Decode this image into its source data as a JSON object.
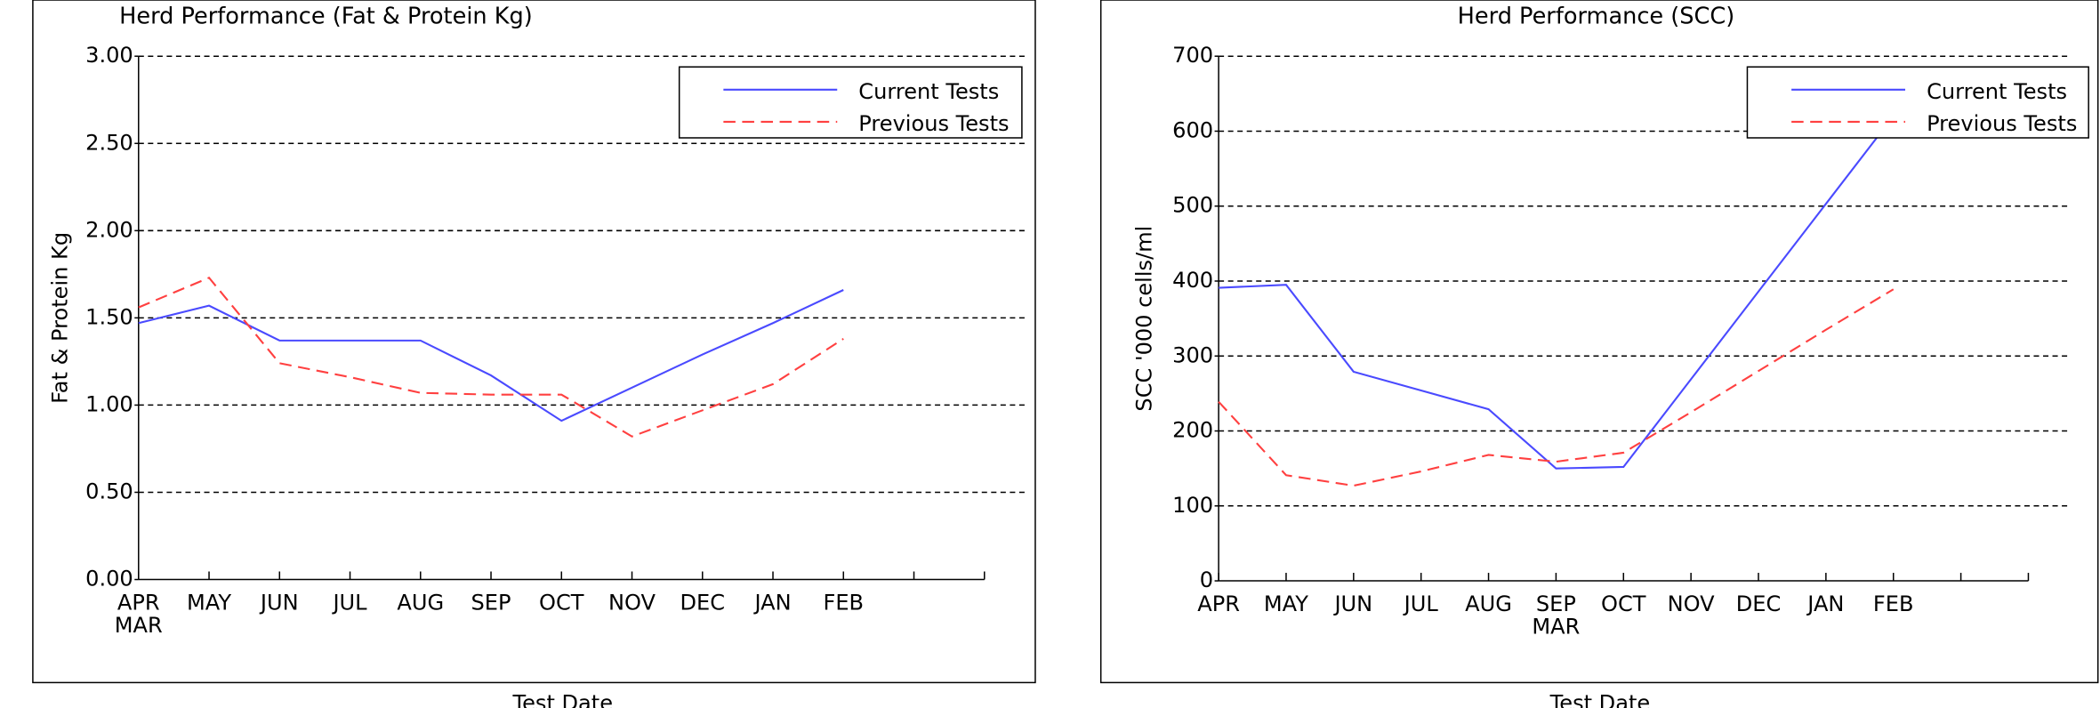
{
  "chart_data": [
    {
      "type": "line",
      "title": "Herd Performance (Fat & Protein Kg)",
      "y_label": "Fat & Protein Kg",
      "x_label": "Test Date",
      "categories": [
        "APR",
        "MAY",
        "JUN",
        "JUL",
        "AUG",
        "SEP",
        "OCT",
        "NOV",
        "DEC",
        "JAN",
        "FEB",
        null,
        null
      ],
      "x_sublabel": "MAR",
      "series": [
        {
          "name": "Current Tests",
          "color": "#4a4aff",
          "values": [
            1.47,
            1.57,
            1.37,
            1.37,
            1.37,
            1.17,
            0.91,
            1.1,
            1.29,
            1.47,
            1.66,
            null,
            null
          ]
        },
        {
          "name": "Previous Tests",
          "color": "#ff4040",
          "dashed": true,
          "values": [
            1.56,
            1.73,
            1.24,
            1.16,
            1.07,
            1.06,
            1.06,
            0.82,
            0.97,
            1.12,
            1.38,
            null,
            null
          ]
        }
      ],
      "ylim": [
        0,
        3
      ],
      "yticks": [
        {
          "value": 0,
          "label": "0.00"
        },
        {
          "value": 0.5,
          "label": "0.50"
        },
        {
          "value": 1,
          "label": "1.00"
        },
        {
          "value": 1.5,
          "label": "1.50"
        },
        {
          "value": 2,
          "label": "2.00"
        },
        {
          "value": 2.5,
          "label": "2.50"
        },
        {
          "value": 3,
          "label": "3.00"
        }
      ],
      "grid": true,
      "legend": "top-right"
    },
    {
      "type": "line",
      "title": "Herd Performance (SCC)",
      "y_label": "SCC '000 cells/ml",
      "x_label": "Test Date",
      "categories": [
        "APR",
        "MAY",
        "JUN",
        "JUL",
        "AUG",
        "SEP",
        "OCT",
        "NOV",
        "DEC",
        "JAN",
        "FEB",
        null,
        null
      ],
      "x_sublabel": "MAR",
      "series": [
        {
          "name": "Current Tests",
          "color": "#4a4aff",
          "values": [
            391,
            395,
            279,
            254,
            229,
            150,
            152,
            269,
            386,
            503,
            620,
            null,
            null
          ]
        },
        {
          "name": "Previous Tests",
          "color": "#ff4040",
          "dashed": true,
          "values": [
            239,
            141,
            127,
            146,
            168,
            159,
            171,
            225,
            280,
            335,
            389,
            null,
            null
          ]
        }
      ],
      "ylim": [
        0,
        700
      ],
      "yticks": [
        0,
        100,
        200,
        300,
        400,
        500,
        600,
        700
      ],
      "grid": true,
      "legend": "top-right"
    }
  ]
}
